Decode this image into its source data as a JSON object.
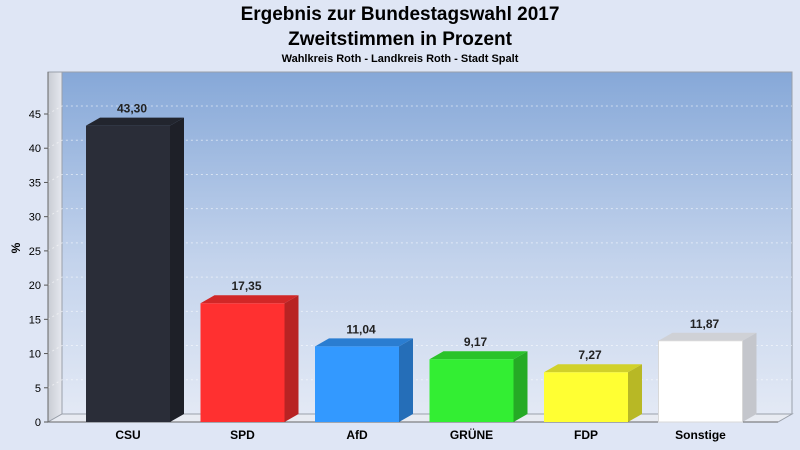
{
  "chart_data": {
    "type": "bar",
    "title": "Ergebnis zur Bundestagswahl 2017",
    "subtitle": "Zweitstimmen in Prozent",
    "caption": "Wahlkreis Roth - Landkreis Roth - Stadt Spalt",
    "ylabel": "%",
    "ylim": [
      0,
      45
    ],
    "yticks": [
      0,
      5,
      10,
      15,
      20,
      25,
      30,
      35,
      40,
      45
    ],
    "grid": true,
    "categories": [
      "CSU",
      "SPD",
      "AfD",
      "GRÜNE",
      "FDP",
      "Sonstige"
    ],
    "values": [
      43.3,
      17.35,
      11.04,
      9.17,
      7.27,
      11.87
    ],
    "value_labels": [
      "43,30",
      "17,35",
      "11,04",
      "9,17",
      "7,27",
      "11,87"
    ],
    "colors": [
      "#2a2d38",
      "#ff3030",
      "#3399ff",
      "#33ee33",
      "#ffff33",
      "#ffffff"
    ]
  }
}
